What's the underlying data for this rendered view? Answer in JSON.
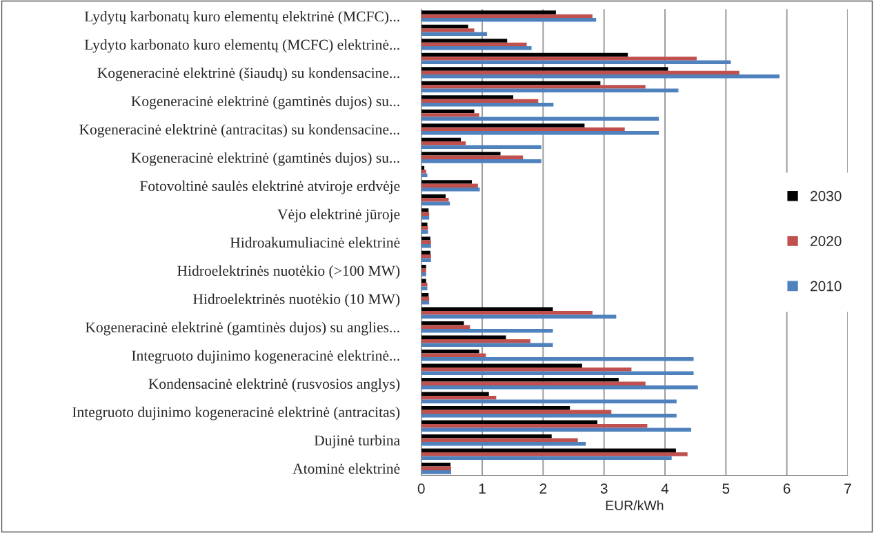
{
  "chart_data": {
    "type": "bar",
    "orientation": "horizontal",
    "xlabel": "EUR/kWh",
    "categories": [
      "Lydytų karbonatų kuro elementų elektrinė (MCFC)...",
      null,
      "Lydyto karbonato kuro elementų (MCFC) elektrinė...",
      null,
      "Kogeneracinė elektrinė (šiaudų) su kondensacine...",
      null,
      "Kogeneracinė elektrinė (gamtinės dujos) su...",
      null,
      "Kogeneracinė elektrinė (antracitas) su kondensacine...",
      null,
      "Kogeneracinė elektrinė (gamtinės dujos) su...",
      null,
      "Fotovoltinė saulės elektrinė atviroje erdvėje",
      null,
      "Vėjo elektrinė jūroje",
      null,
      "Hidroakumuliacinė elektrinė",
      null,
      "Hidroelektrinės nuotėkio (>100 MW)",
      null,
      "Hidroelektrinės nuotėkio (10 MW)",
      null,
      "Kogeneracinė elektrinė (gamtinės dujos) su anglies...",
      null,
      "Integruoto dujinimo kogeneracinė elektrinė...",
      null,
      "Kondensacinė elektrinė (rusvosios anglys)",
      null,
      "Integruoto dujinimo kogeneracinė elektrinė (antracitas)",
      null,
      "Dujinė turbina",
      null,
      "Atominė elektrinė"
    ],
    "series": [
      {
        "name": "2030",
        "color": "#000000",
        "values": [
          2.21,
          0.77,
          1.41,
          3.39,
          4.05,
          2.94,
          1.51,
          0.87,
          2.68,
          0.65,
          1.3,
          0.05,
          0.83,
          0.4,
          0.12,
          0.1,
          0.15,
          0.15,
          0.08,
          0.08,
          0.12,
          2.16,
          0.7,
          1.39,
          0.95,
          2.64,
          3.24,
          1.11,
          2.44,
          2.89,
          2.14,
          4.18,
          0.48
        ]
      },
      {
        "name": "2020",
        "color": "#c0504d",
        "values": [
          2.81,
          0.87,
          1.73,
          4.52,
          5.22,
          3.68,
          1.92,
          0.95,
          3.34,
          0.73,
          1.67,
          0.08,
          0.93,
          0.45,
          0.13,
          0.11,
          0.16,
          0.16,
          0.08,
          0.1,
          0.13,
          2.81,
          0.8,
          1.79,
          1.06,
          3.45,
          3.68,
          1.23,
          3.12,
          3.71,
          2.57,
          4.37,
          0.49
        ]
      },
      {
        "name": "2010",
        "color": "#4f81bd",
        "values": [
          2.87,
          1.08,
          1.81,
          5.08,
          5.88,
          4.22,
          2.17,
          3.9,
          3.9,
          1.97,
          1.97,
          0.1,
          0.96,
          0.47,
          0.13,
          0.11,
          0.16,
          0.16,
          0.08,
          0.1,
          0.13,
          3.2,
          2.16,
          2.16,
          4.47,
          4.47,
          4.54,
          4.19,
          4.19,
          4.43,
          2.7,
          4.11,
          0.49
        ]
      }
    ],
    "xlim": [
      0,
      7
    ],
    "xticks": [
      0,
      1,
      2,
      3,
      4,
      5,
      6,
      7
    ],
    "grid": "x",
    "legend": "right"
  }
}
